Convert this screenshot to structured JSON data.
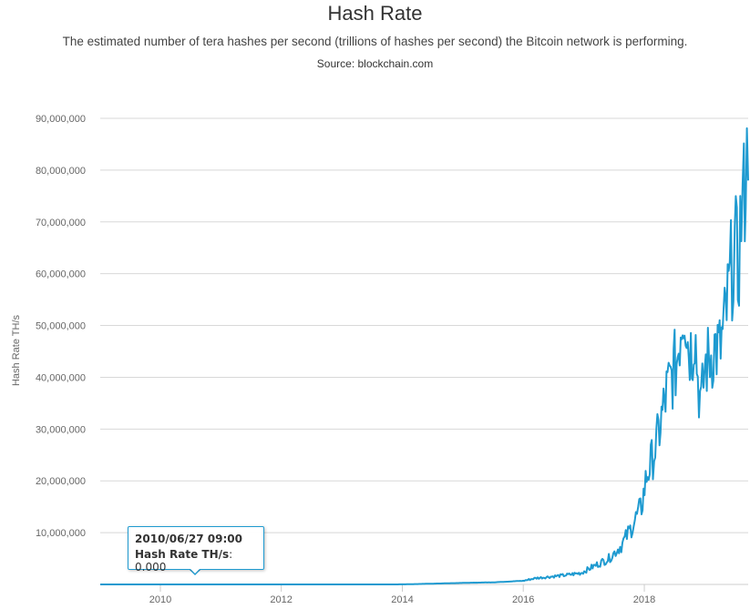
{
  "chart_data": {
    "type": "line",
    "title": "Hash Rate",
    "subtitle": "The estimated number of tera hashes per second (trillions of hashes per second) the Bitcoin network is performing.",
    "source": "Source: blockchain.com",
    "xlabel": "",
    "ylabel": "Hash Rate TH/s",
    "xlim": [
      "2009-01-03",
      "2019-09-20"
    ],
    "ylim": [
      0,
      90000000
    ],
    "x_ticks": [
      "2010",
      "2012",
      "2014",
      "2016",
      "2018"
    ],
    "y_ticks": [
      "10,000,000",
      "20,000,000",
      "30,000,000",
      "40,000,000",
      "50,000,000",
      "60,000,000",
      "70,000,000",
      "80,000,000",
      "90,000,000"
    ],
    "grid": true,
    "series": [
      {
        "name": "Hash Rate TH/s",
        "color": "#1e9ad0",
        "points": [
          [
            "2009-01-03",
            0
          ],
          [
            "2010-06-27",
            0
          ],
          [
            "2012-01-01",
            10
          ],
          [
            "2013-06-01",
            100
          ],
          [
            "2014-01-01",
            10000
          ],
          [
            "2014-07-01",
            140000
          ],
          [
            "2015-01-01",
            300000
          ],
          [
            "2015-07-01",
            400000
          ],
          [
            "2016-01-01",
            700000
          ],
          [
            "2016-03-15",
            1200000
          ],
          [
            "2016-06-15",
            1500000
          ],
          [
            "2016-09-15",
            1800000
          ],
          [
            "2016-12-15",
            2200000
          ],
          [
            "2017-03-01",
            3500000
          ],
          [
            "2017-06-01",
            5000000
          ],
          [
            "2017-08-15",
            7500000
          ],
          [
            "2017-10-15",
            11000000
          ],
          [
            "2017-12-15",
            15000000
          ],
          [
            "2018-01-15",
            21000000
          ],
          [
            "2018-02-15",
            24000000
          ],
          [
            "2018-03-15",
            27000000
          ],
          [
            "2018-04-15",
            32000000
          ],
          [
            "2018-05-15",
            37000000
          ],
          [
            "2018-06-15",
            40000000
          ],
          [
            "2018-07-15",
            43000000
          ],
          [
            "2018-08-15",
            52000000
          ],
          [
            "2018-09-01",
            55000000
          ],
          [
            "2018-09-20",
            47000000
          ],
          [
            "2018-10-15",
            45000000
          ],
          [
            "2018-11-01",
            50000000
          ],
          [
            "2018-11-20",
            40000000
          ],
          [
            "2018-12-10",
            34000000
          ],
          [
            "2019-01-01",
            42000000
          ],
          [
            "2019-02-01",
            44000000
          ],
          [
            "2019-03-01",
            46000000
          ],
          [
            "2019-04-01",
            45000000
          ],
          [
            "2019-05-01",
            50000000
          ],
          [
            "2019-05-25",
            56000000
          ],
          [
            "2019-06-15",
            62000000
          ],
          [
            "2019-07-01",
            66000000
          ],
          [
            "2019-07-20",
            60000000
          ],
          [
            "2019-08-10",
            72000000
          ],
          [
            "2019-08-25",
            74000000
          ],
          [
            "2019-09-05",
            81000000
          ],
          [
            "2019-09-20",
            78000000
          ]
        ]
      }
    ],
    "tooltip": {
      "date": "2010/06/27 09:00",
      "series_label": "Hash Rate TH/s",
      "value": "0.000"
    }
  }
}
